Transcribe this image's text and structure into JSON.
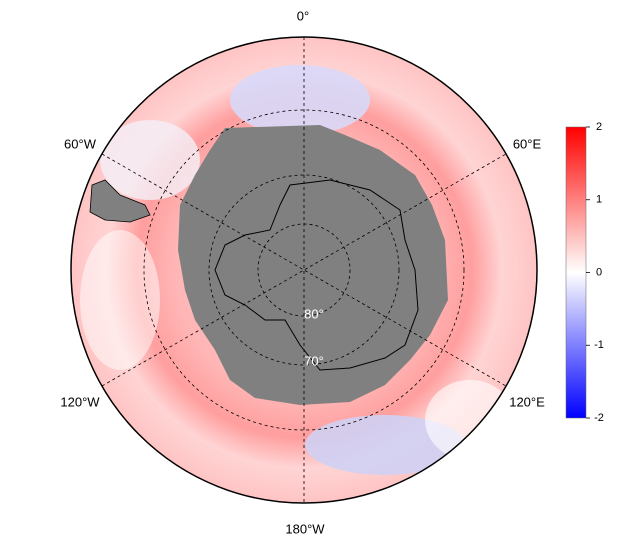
{
  "map": {
    "longitude_labels": [
      "0°",
      "60°E",
      "120°E",
      "180°W",
      "120°W",
      "60°W"
    ],
    "latitude_labels": [
      "80°",
      "70°"
    ]
  },
  "colorbar": {
    "range": [
      -2,
      2
    ],
    "ticks": [
      -2,
      -1,
      0,
      1,
      2
    ]
  }
}
